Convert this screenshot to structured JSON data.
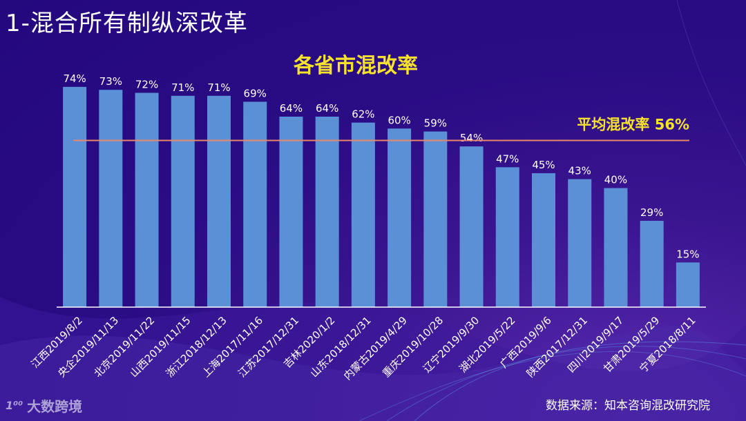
{
  "page": {
    "title": "1-混合所有制纵深改革",
    "source": "数据来源：知本咨询混改研究院",
    "brand_name": "大数跨境",
    "brand_logo_text": "1⁰⁰"
  },
  "colors": {
    "bar": "#5b8fd6",
    "axis": "#ffffff",
    "avg_line": "#e8876a",
    "avg_label": "#f7e22b",
    "title": "#f7e22b"
  },
  "chart_data": {
    "type": "bar",
    "title": "各省市混改率",
    "categories": [
      "江西2019/8/2",
      "央企2019/11/13",
      "北京2019/11/22",
      "山西2019/11/15",
      "浙江2018/12/13",
      "上海2017/11/16",
      "江苏2017/12/31",
      "吉林2020/1/2",
      "山东2018/12/31",
      "内蒙古2019/4/29",
      "重庆2019/10/28",
      "辽宁2019/9/30",
      "湖北2019/5/22",
      "广西2019/9/6",
      "陕西2017/12/31",
      "四川2019/9/17",
      "甘肃2019/5/29",
      "宁夏2018/8/11"
    ],
    "values": [
      74,
      73,
      72,
      71,
      71,
      69,
      64,
      64,
      62,
      60,
      59,
      54,
      47,
      45,
      43,
      40,
      29,
      15
    ],
    "value_labels": [
      "74%",
      "73%",
      "72%",
      "71%",
      "71%",
      "69%",
      "64%",
      "64%",
      "62%",
      "60%",
      "59%",
      "54%",
      "47%",
      "45%",
      "43%",
      "40%",
      "29%",
      "15%"
    ],
    "ylim": [
      0,
      80
    ],
    "xlabel": "",
    "ylabel": "",
    "grid": false,
    "reference_line": {
      "value": 56,
      "label": "平均混改率 56%"
    }
  }
}
